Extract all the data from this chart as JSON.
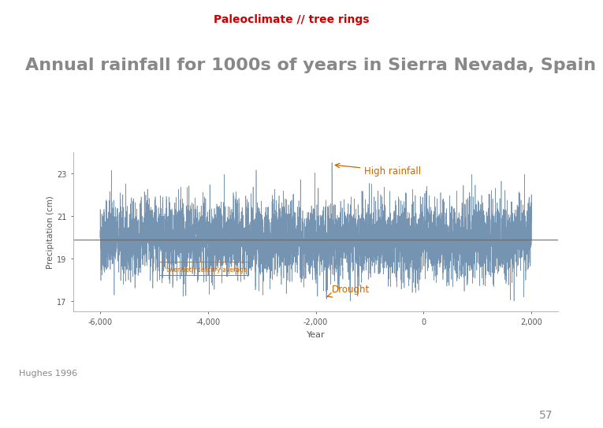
{
  "title_bar_text": "Paleoclimate // tree rings",
  "title_bar_color": "#cc0000",
  "title_bar_bg": "#111111",
  "main_title": "Annual rainfall for 1000s of years in Sierra Nevada, Spain",
  "main_title_color": "#888888",
  "xlabel": "Year",
  "ylabel": "Precipitation (cm)",
  "xlim": [
    -6500,
    2500
  ],
  "ylim": [
    16.5,
    24.0
  ],
  "yticks": [
    17,
    19,
    21,
    23
  ],
  "xticks": [
    -6000,
    -4000,
    -2000,
    0,
    2000
  ],
  "mean_line_y": 19.9,
  "mean_line_color": "#666666",
  "line_color": "#6688aa",
  "annotation_color": "#cc6600",
  "high_rainfall_label": "High rainfall",
  "drought_label": "Drought",
  "twentieth_century_label": "twentieth century average",
  "source_label": "Hughes 1996",
  "page_number": "57",
  "bg_color": "#ffffff",
  "seed": 42,
  "x_start": -6000,
  "x_end": 2000,
  "n_points": 8001,
  "noise_std": 0.85
}
